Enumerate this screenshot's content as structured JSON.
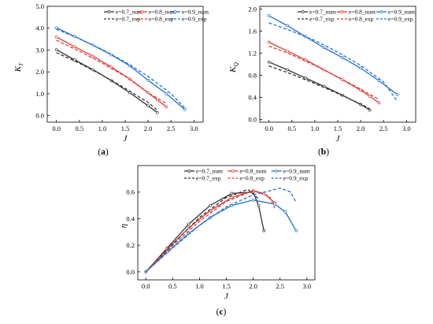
{
  "chart_data": [
    {
      "panel_label": "(a)",
      "type": "line",
      "xlabel": "J",
      "ylabel": "K",
      "ylabel_sub": "T",
      "xlim": [
        -0.2,
        3.2
      ],
      "ylim": [
        -0.3,
        5.0
      ],
      "xticks": [
        "0.0",
        "0.5",
        "1.0",
        "1.5",
        "2.0",
        "2.5",
        "3.0"
      ],
      "yticks": [
        "0.0",
        "1.0",
        "2.0",
        "3.0",
        "4.0",
        "5.0"
      ],
      "legend": "top-right",
      "series": [
        {
          "name": "e=0.7_num",
          "color": "#333333",
          "dash": false,
          "x": [
            0,
            0.4,
            0.8,
            1.2,
            1.6,
            2.0,
            2.2
          ],
          "y": [
            3.02,
            2.55,
            2.1,
            1.6,
            1.05,
            0.45,
            0.14
          ]
        },
        {
          "name": "e=0.8_num",
          "color": "#e53935",
          "dash": false,
          "x": [
            0,
            0.4,
            0.8,
            1.2,
            1.6,
            2.0,
            2.2,
            2.4
          ],
          "y": [
            3.6,
            3.15,
            2.72,
            2.22,
            1.68,
            1.05,
            0.72,
            0.4
          ]
        },
        {
          "name": "e=0.9_num",
          "color": "#1f6fd0",
          "dash": false,
          "x": [
            0,
            0.4,
            0.8,
            1.2,
            1.6,
            2.0,
            2.4,
            2.8
          ],
          "y": [
            4.02,
            3.62,
            3.22,
            2.78,
            2.28,
            1.62,
            1.0,
            0.28
          ]
        },
        {
          "name": "e=0.7_exp",
          "color": "#333333",
          "dash": true,
          "x": [
            0,
            0.5,
            1.0,
            1.5,
            2.0,
            2.2
          ],
          "y": [
            2.88,
            2.4,
            1.85,
            1.25,
            0.6,
            0.25
          ]
        },
        {
          "name": "e=0.8_exp",
          "color": "#e53935",
          "dash": true,
          "x": [
            0,
            0.5,
            1.0,
            1.5,
            2.0,
            2.4
          ],
          "y": [
            3.45,
            2.95,
            2.4,
            1.8,
            1.05,
            0.55
          ]
        },
        {
          "name": "e=0.9_exp",
          "color": "#1f6fd0",
          "dash": true,
          "x": [
            0,
            0.5,
            1.0,
            1.5,
            2.0,
            2.5,
            2.8
          ],
          "y": [
            3.95,
            3.52,
            3.02,
            2.45,
            1.8,
            1.0,
            0.35
          ]
        }
      ]
    },
    {
      "panel_label": "(b)",
      "type": "line",
      "xlabel": "J",
      "ylabel": "K",
      "ylabel_sub": "Q",
      "xlim": [
        -0.2,
        3.2
      ],
      "ylim": [
        -0.05,
        2.05
      ],
      "xticks": [
        "0.0",
        "0.5",
        "1.0",
        "1.5",
        "2.0",
        "2.5",
        "3.0"
      ],
      "yticks": [
        "0.0",
        "0.4",
        "0.8",
        "1.2",
        "1.6",
        "2.0"
      ],
      "legend": "top-right",
      "series": [
        {
          "name": "e=0.7_num",
          "color": "#333333",
          "dash": false,
          "x": [
            0,
            0.4,
            0.8,
            1.2,
            1.6,
            2.0,
            2.2
          ],
          "y": [
            1.04,
            0.9,
            0.75,
            0.6,
            0.44,
            0.27,
            0.17
          ]
        },
        {
          "name": "e=0.8_num",
          "color": "#e53935",
          "dash": false,
          "x": [
            0,
            0.4,
            0.8,
            1.2,
            1.6,
            2.0,
            2.2,
            2.4
          ],
          "y": [
            1.4,
            1.24,
            1.08,
            0.9,
            0.72,
            0.53,
            0.42,
            0.3
          ]
        },
        {
          "name": "e=0.9_num",
          "color": "#1f6fd0",
          "dash": false,
          "x": [
            0,
            0.4,
            0.8,
            1.2,
            1.6,
            2.0,
            2.4,
            2.8
          ],
          "y": [
            1.88,
            1.7,
            1.5,
            1.3,
            1.12,
            0.93,
            0.7,
            0.45
          ]
        },
        {
          "name": "e=0.7_exp",
          "color": "#333333",
          "dash": true,
          "x": [
            0,
            0.5,
            1.0,
            1.5,
            2.0,
            2.2
          ],
          "y": [
            0.97,
            0.82,
            0.65,
            0.47,
            0.28,
            0.19
          ]
        },
        {
          "name": "e=0.8_exp",
          "color": "#e53935",
          "dash": true,
          "x": [
            0,
            0.5,
            1.0,
            1.5,
            2.0,
            2.4
          ],
          "y": [
            1.33,
            1.17,
            0.98,
            0.77,
            0.55,
            0.36
          ]
        },
        {
          "name": "e=0.9_exp",
          "color": "#1f6fd0",
          "dash": true,
          "x": [
            0,
            0.5,
            1.0,
            1.5,
            2.0,
            2.5,
            2.8
          ],
          "y": [
            1.75,
            1.6,
            1.43,
            1.22,
            0.98,
            0.68,
            0.33
          ]
        }
      ]
    },
    {
      "panel_label": "(c)",
      "type": "line",
      "xlabel": "J",
      "ylabel": "η",
      "xlim": [
        -0.15,
        3.15
      ],
      "ylim": [
        -0.06,
        0.8
      ],
      "xticks": [
        "0.0",
        "0.5",
        "1.0",
        "1.5",
        "2.0",
        "2.5",
        "3.0"
      ],
      "yticks": [
        "0.0",
        "0.2",
        "0.4",
        "0.6"
      ],
      "legend": "top",
      "series": [
        {
          "name": "e=0.7_num",
          "color": "#333333",
          "dash": false,
          "x": [
            0,
            0.4,
            0.8,
            1.2,
            1.6,
            2.0,
            2.1,
            2.2
          ],
          "y": [
            0,
            0.18,
            0.36,
            0.5,
            0.59,
            0.6,
            0.5,
            0.31
          ]
        },
        {
          "name": "e=0.8_num",
          "color": "#e53935",
          "dash": false,
          "x": [
            0,
            0.4,
            0.8,
            1.2,
            1.6,
            2.0,
            2.2,
            2.4
          ],
          "y": [
            0,
            0.17,
            0.33,
            0.46,
            0.56,
            0.61,
            0.59,
            0.52
          ]
        },
        {
          "name": "e=0.9_num",
          "color": "#1f6fd0",
          "dash": false,
          "x": [
            0,
            0.4,
            0.8,
            1.2,
            1.6,
            2.0,
            2.4,
            2.6,
            2.8
          ],
          "y": [
            0,
            0.15,
            0.29,
            0.41,
            0.5,
            0.54,
            0.51,
            0.45,
            0.31
          ]
        },
        {
          "name": "e=0.7_exp",
          "color": "#333333",
          "dash": true,
          "x": [
            0,
            0.5,
            1.0,
            1.5,
            1.9,
            2.1
          ],
          "y": [
            0,
            0.21,
            0.41,
            0.56,
            0.62,
            0.55
          ]
        },
        {
          "name": "e=0.8_exp",
          "color": "#e53935",
          "dash": true,
          "x": [
            0,
            0.5,
            1.0,
            1.5,
            2.0,
            2.3,
            2.4
          ],
          "y": [
            0,
            0.2,
            0.38,
            0.53,
            0.61,
            0.57,
            0.48
          ]
        },
        {
          "name": "e=0.9_exp",
          "color": "#1f6fd0",
          "dash": true,
          "x": [
            0,
            0.5,
            1.0,
            1.5,
            2.0,
            2.5,
            2.7,
            2.8
          ],
          "y": [
            0,
            0.18,
            0.35,
            0.49,
            0.58,
            0.63,
            0.6,
            0.52
          ]
        }
      ]
    }
  ]
}
